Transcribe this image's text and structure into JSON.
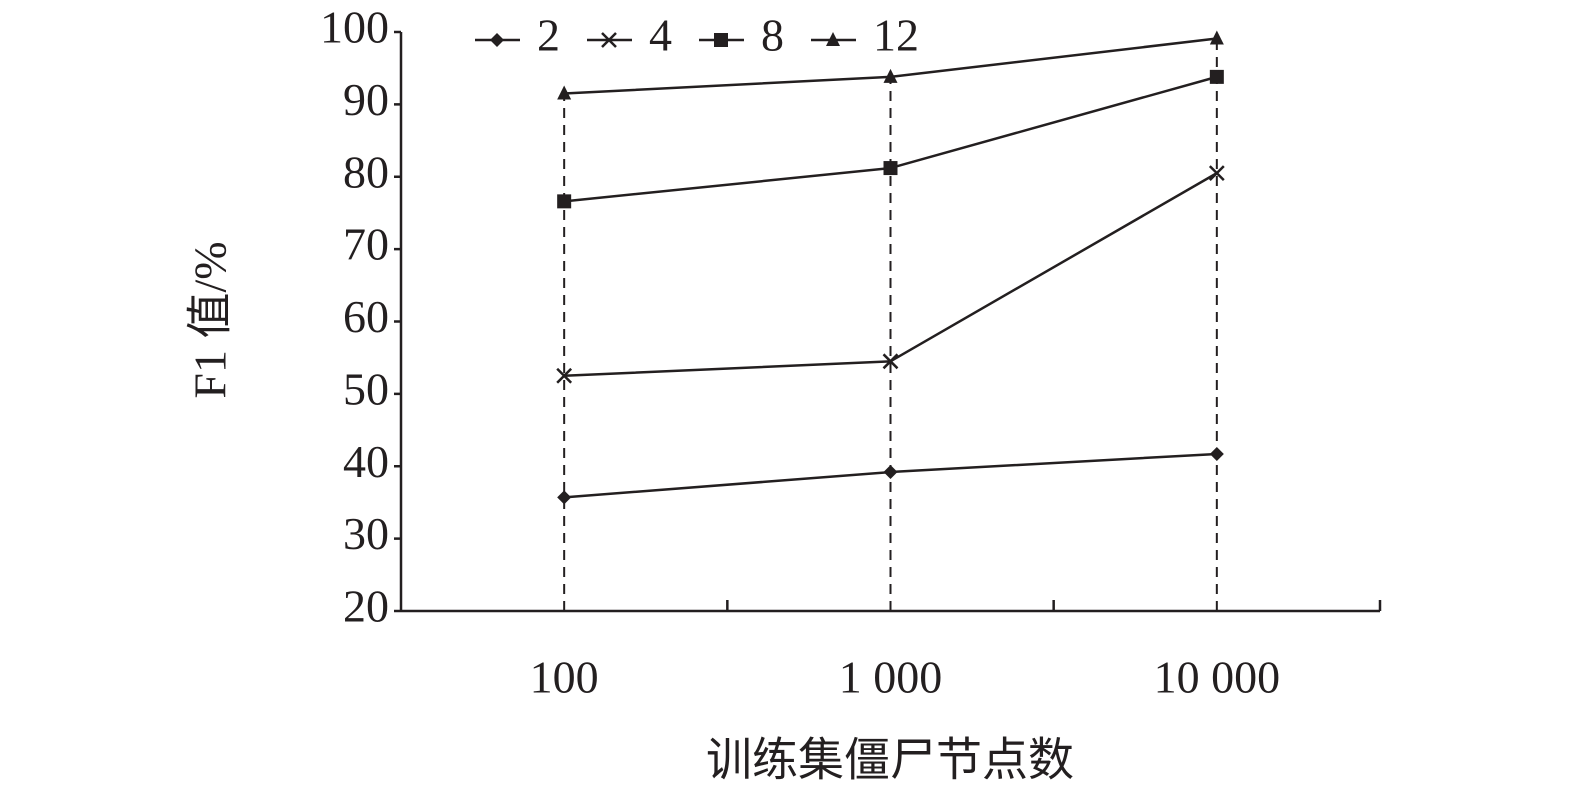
{
  "chart_data": {
    "type": "line",
    "xlabel": "训练集僵尸节点数",
    "ylabel": "F1 值/%",
    "categories": [
      "100",
      "1 000",
      "10 000"
    ],
    "series": [
      {
        "name": "2",
        "color": "#231f20",
        "marker": "diamond",
        "values": [
          35.7,
          39.2,
          41.7
        ]
      },
      {
        "name": "4",
        "color": "#231f20",
        "marker": "x",
        "values": [
          52.5,
          54.5,
          80.5
        ]
      },
      {
        "name": "8",
        "color": "#231f20",
        "marker": "square",
        "values": [
          76.6,
          81.2,
          93.8
        ]
      },
      {
        "name": "12",
        "color": "#231f20",
        "marker": "triangle",
        "values": [
          91.5,
          93.8,
          99.1
        ]
      }
    ],
    "ylim": [
      20,
      100
    ],
    "yticks": [
      20,
      30,
      40,
      50,
      60,
      70,
      80,
      90,
      100
    ],
    "drop_lines": true,
    "legend": "top"
  }
}
